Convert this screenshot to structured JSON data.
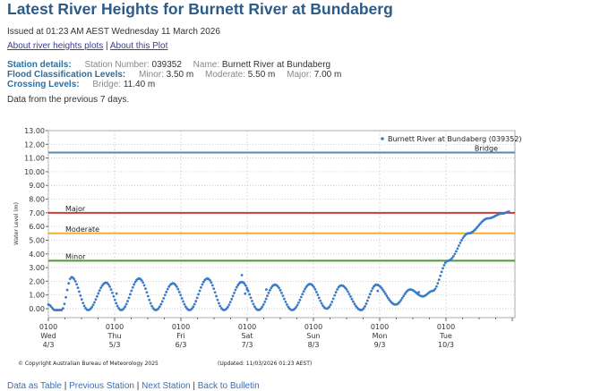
{
  "title": "Latest River Heights for Burnett River at Bundaberg",
  "issued": "Issued at 01:23 AM AEST Wednesday 11 March 2026",
  "links": [
    "About river heights plots",
    "About this Plot"
  ],
  "station": {
    "label": "Station details:",
    "number_key": "Station Number:",
    "number": "039352",
    "name_key": "Name:",
    "name": "Burnett River at Bundaberg"
  },
  "flood": {
    "label": "Flood Classification Levels:",
    "minor_key": "Minor:",
    "minor": "3.50 m",
    "moderate_key": "Moderate:",
    "moderate": "5.50 m",
    "major_key": "Major:",
    "major": "7.00 m"
  },
  "crossing": {
    "label": "Crossing Levels:",
    "bridge_key": "Bridge:",
    "bridge": "11.40 m"
  },
  "period_note": "Data from the previous 7 days.",
  "copyright": "© Copyright Australian Bureau of Meteorology 2025",
  "updated": "(Updated: 11/03/2026 01:23 AEST)",
  "footer_links": [
    "Data as Table",
    "Previous Station",
    "Next Station",
    "Back to Bulletin"
  ],
  "chart_data": {
    "type": "scatter",
    "ylabel": "Water Level (m)",
    "ylim": [
      -0.6,
      13
    ],
    "yticks": [
      "0.00",
      "1.00",
      "2.00",
      "3.00",
      "4.00",
      "5.00",
      "6.00",
      "7.00",
      "8.00",
      "9.00",
      "10.00",
      "11.00",
      "12.00",
      "13.00"
    ],
    "xlim_days": [
      0,
      7.05
    ],
    "xticks": [
      {
        "time": "0100",
        "day": "Wed",
        "date": "4/3"
      },
      {
        "time": "0100",
        "day": "Thu",
        "date": "5/3"
      },
      {
        "time": "0100",
        "day": "Fri",
        "date": "6/3"
      },
      {
        "time": "0100",
        "day": "Sat",
        "date": "7/3"
      },
      {
        "time": "0100",
        "day": "Sun",
        "date": "8/3"
      },
      {
        "time": "0100",
        "day": "Mon",
        "date": "9/3"
      },
      {
        "time": "0100",
        "day": "Tue",
        "date": "10/3"
      }
    ],
    "legend": "Burnett River at Bundaberg (039352)",
    "legend_position": "top-right",
    "grid": true,
    "thresholds": [
      {
        "name": "Bridge",
        "value": 11.4,
        "color": "#5a8aa8"
      },
      {
        "name": "Major",
        "value": 7.0,
        "color": "#d03a3a"
      },
      {
        "name": "Moderate",
        "value": 5.5,
        "color": "#f0b030"
      },
      {
        "name": "Minor",
        "value": 3.5,
        "color": "#4a9a3a"
      }
    ],
    "series_color": "#3a7cc8",
    "series_keypoints_days_level": [
      [
        0,
        0.3
      ],
      [
        0.1,
        -0.1
      ],
      [
        0.2,
        -0.1
      ],
      [
        0.35,
        2.3
      ],
      [
        0.6,
        -0.1
      ],
      [
        0.87,
        1.9
      ],
      [
        1.1,
        -0.1
      ],
      [
        1.37,
        2.2
      ],
      [
        1.62,
        -0.1
      ],
      [
        1.88,
        1.85
      ],
      [
        2.13,
        -0.1
      ],
      [
        2.4,
        2.2
      ],
      [
        2.65,
        -0.1
      ],
      [
        2.92,
        1.95
      ],
      [
        3.17,
        -0.1
      ],
      [
        3.42,
        1.75
      ],
      [
        3.68,
        -0.1
      ],
      [
        3.95,
        1.8
      ],
      [
        4.2,
        0.0
      ],
      [
        4.42,
        1.7
      ],
      [
        4.72,
        -0.1
      ],
      [
        4.95,
        1.75
      ],
      [
        5.24,
        0.3
      ],
      [
        5.46,
        1.4
      ],
      [
        5.65,
        0.9
      ],
      [
        5.8,
        1.3
      ],
      [
        6.03,
        3.5
      ],
      [
        6.34,
        5.5
      ],
      [
        6.64,
        6.6
      ],
      [
        6.85,
        6.95
      ],
      [
        6.97,
        7.1
      ]
    ],
    "outliers_days_level": [
      [
        1.03,
        1.1
      ],
      [
        2.92,
        2.45
      ],
      [
        3.0,
        1.4
      ],
      [
        2.97,
        1.1
      ],
      [
        3.29,
        1.4
      ],
      [
        4.97,
        1.3
      ],
      [
        5.59,
        1.2
      ]
    ]
  }
}
